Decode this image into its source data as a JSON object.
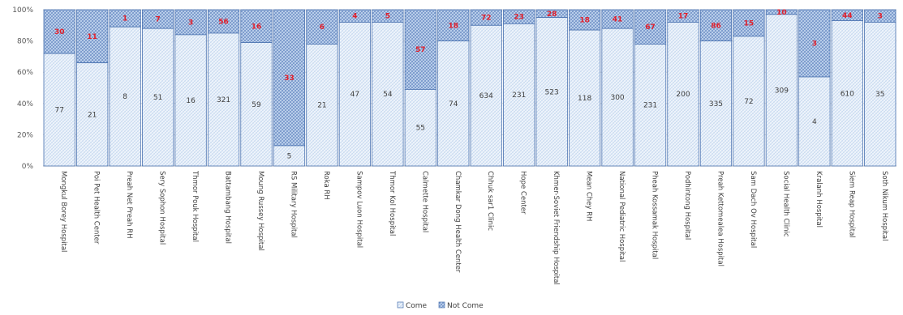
{
  "chart_data": {
    "type": "bar",
    "stacked": "percent",
    "categories": [
      "Mongkul Borey Hospital",
      "Poi Pet Health Center",
      "Preah Net Preah RH",
      "Sery Sophon Hospital",
      "Thmor Pouk Hospital",
      "Battambang Hospital",
      "Moung Russey Hospital",
      "RS Military Hospital",
      "Roka RH",
      "Sampov Luon Hospital",
      "Thmor Kol Hospital",
      "Calmette Hospital",
      "Chamkar Dong Health Center",
      "Chhuk sar1 Clinic",
      "Hope Center",
      "Khmer-Soviet Friendship Hospital",
      "Mean Chey RH",
      "National Pediatric Hospital",
      "Pheah Kossamak Hospital",
      "Podhintong Hospital",
      "Preah Kettomealea Hospital",
      "Sam Dach Ov Hospital",
      "Social Health Clinic",
      "Kralanh Hospital",
      "Siem Reap Hospital",
      "Soth Nikum Hospital"
    ],
    "series": [
      {
        "name": "Come",
        "color": "#dce9f7",
        "values": [
          77,
          21,
          8,
          51,
          16,
          321,
          59,
          5,
          21,
          47,
          54,
          55,
          74,
          634,
          231,
          523,
          118,
          300,
          231,
          200,
          335,
          72,
          309,
          4,
          610,
          35
        ],
        "percent": [
          72,
          66,
          89,
          88,
          84,
          85,
          79,
          13,
          78,
          92,
          92,
          49,
          80,
          90,
          91,
          95,
          87,
          88,
          78,
          92,
          80,
          83,
          97,
          57,
          93,
          92
        ]
      },
      {
        "name": "Not Come",
        "color": "#a9c3e6",
        "values": [
          30,
          11,
          1,
          7,
          3,
          56,
          16,
          33,
          6,
          4,
          5,
          57,
          18,
          72,
          23,
          28,
          18,
          41,
          67,
          17,
          86,
          15,
          10,
          3,
          44,
          3
        ]
      }
    ],
    "yticks": [
      "0%",
      "20%",
      "40%",
      "60%",
      "80%",
      "100%"
    ],
    "ylim": [
      0,
      100
    ],
    "legend_position": "bottom"
  }
}
